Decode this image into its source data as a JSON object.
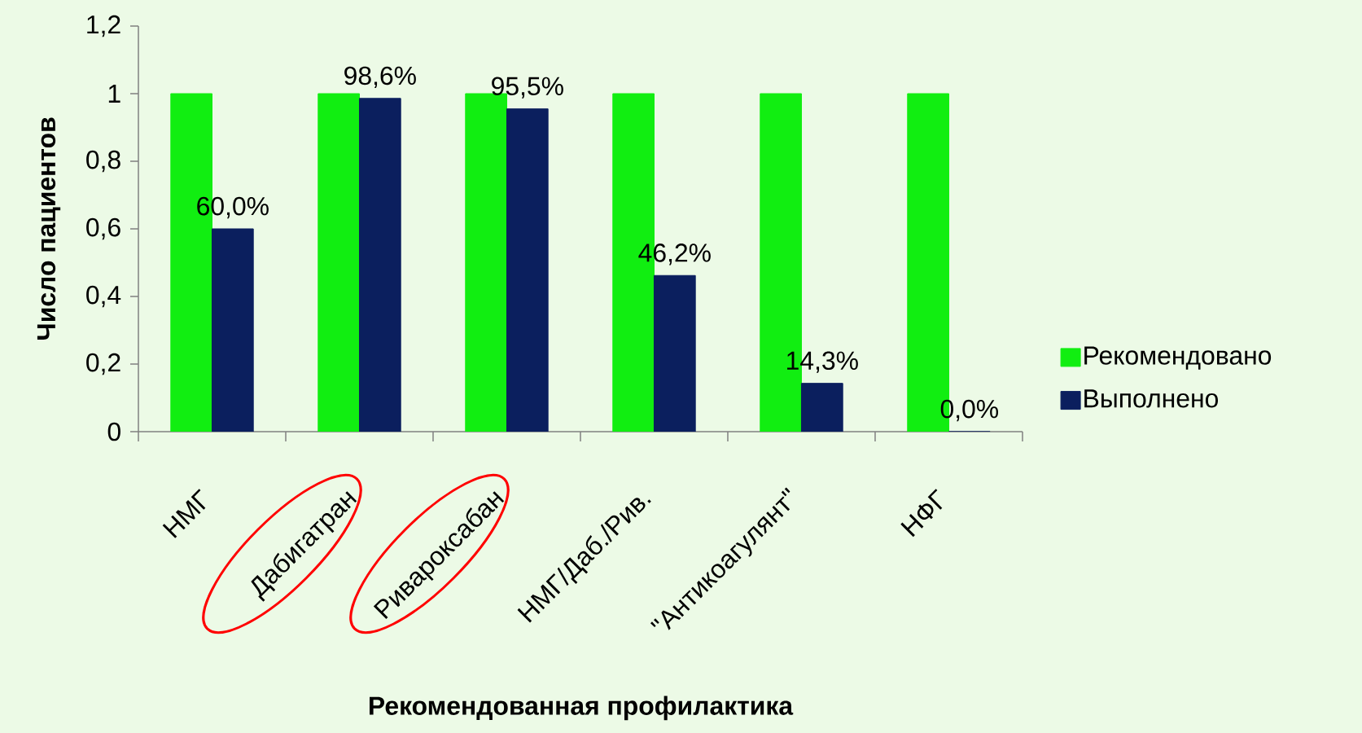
{
  "chart_data": {
    "type": "bar",
    "xlabel": "Рекомендованная профилактика",
    "ylabel": "Число пациентов",
    "categories": [
      "НМГ",
      "Дабигатран",
      "Ривароксабан",
      "НМГ/Даб./Рив.",
      "\"Антикоагулянт\"",
      "НФГ"
    ],
    "series": [
      {
        "name": "Рекомендовано",
        "color": "#11ee11",
        "values": [
          1,
          1,
          1,
          1,
          1,
          1
        ]
      },
      {
        "name": "Выполнено",
        "color": "#0b1f5e",
        "values": [
          0.6,
          0.986,
          0.955,
          0.462,
          0.143,
          0
        ],
        "value_labels": [
          "60,0%",
          "98,6%",
          "95,5%",
          "46,2%",
          "14,3%",
          "0,0%"
        ]
      }
    ],
    "ylim": [
      0,
      1.2
    ],
    "yticks": [
      0,
      {
        "value": 0.2,
        "label": "0,2"
      },
      {
        "value": 0.4,
        "label": "0,4"
      },
      {
        "value": 0.6,
        "label": "0,6"
      },
      {
        "value": 0.8,
        "label": "0,8"
      },
      1,
      {
        "value": 1.2,
        "label": "1,2"
      }
    ],
    "grid": false,
    "legend": "right"
  }
}
